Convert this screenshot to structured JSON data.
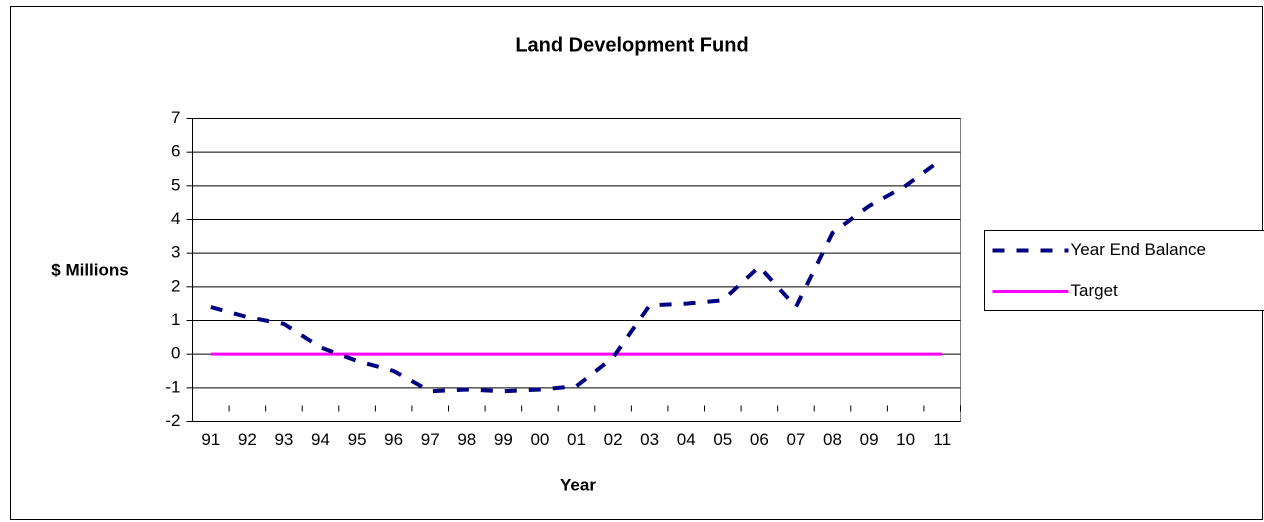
{
  "chart_data": {
    "type": "line",
    "title": "Land Development Fund",
    "x_label": "Year",
    "y_label": "$ Millions",
    "categories": [
      "91",
      "92",
      "93",
      "94",
      "95",
      "96",
      "97",
      "98",
      "99",
      "00",
      "01",
      "02",
      "03",
      "04",
      "05",
      "06",
      "07",
      "08",
      "09",
      "10",
      "11"
    ],
    "series": [
      {
        "name": "Year End Balance",
        "color": "#000080",
        "dashed": true,
        "values": [
          1.4,
          1.1,
          0.9,
          0.2,
          -0.2,
          -0.5,
          -1.1,
          -1.05,
          -1.1,
          -1.05,
          -0.95,
          -0.1,
          1.45,
          1.5,
          1.6,
          2.6,
          1.4,
          3.6,
          4.4,
          5.0,
          5.8
        ]
      },
      {
        "name": "Target",
        "color": "#ff00ff",
        "dashed": false,
        "values": [
          0,
          0,
          0,
          0,
          0,
          0,
          0,
          0,
          0,
          0,
          0,
          0,
          0,
          0,
          0,
          0,
          0,
          0,
          0,
          0,
          0
        ]
      }
    ],
    "ylim": [
      -2,
      7
    ],
    "yticks": [
      -2,
      -1,
      0,
      1,
      2,
      3,
      4,
      5,
      6,
      7
    ],
    "grid": true,
    "legend": "right"
  }
}
